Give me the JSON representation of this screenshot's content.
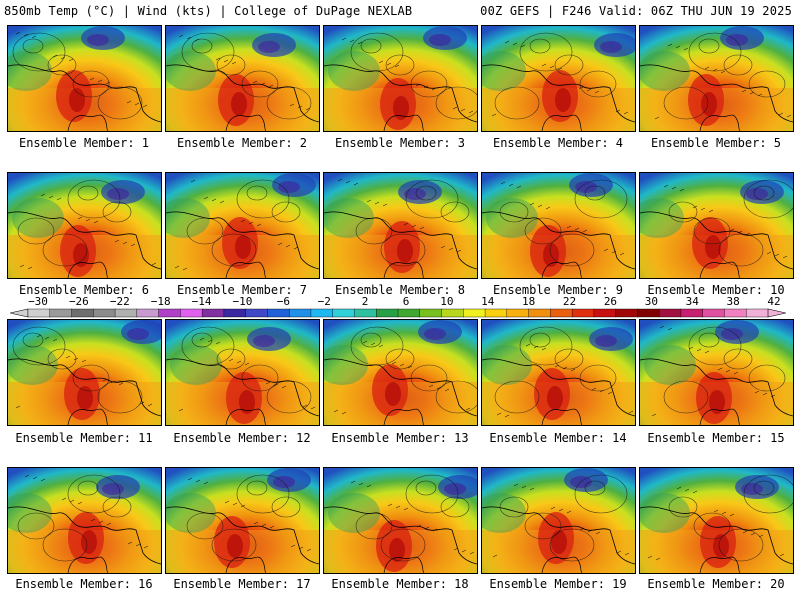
{
  "header": {
    "left": "850mb Temp (°C) | Wind (kts) | College of DuPage NEXLAB",
    "right": "00Z GEFS | F246 Valid: 06Z THU JUN 19 2025"
  },
  "panels": [
    {
      "caption": "Ensemble Member: 1"
    },
    {
      "caption": "Ensemble Member: 2"
    },
    {
      "caption": "Ensemble Member: 3"
    },
    {
      "caption": "Ensemble Member: 4"
    },
    {
      "caption": "Ensemble Member: 5"
    },
    {
      "caption": "Ensemble Member: 6"
    },
    {
      "caption": "Ensemble Member: 7"
    },
    {
      "caption": "Ensemble Member: 8"
    },
    {
      "caption": "Ensemble Member: 9"
    },
    {
      "caption": "Ensemble Member: 10"
    },
    {
      "caption": "Ensemble Member: 11"
    },
    {
      "caption": "Ensemble Member: 12"
    },
    {
      "caption": "Ensemble Member: 13"
    },
    {
      "caption": "Ensemble Member: 14"
    },
    {
      "caption": "Ensemble Member: 15"
    },
    {
      "caption": "Ensemble Member: 16"
    },
    {
      "caption": "Ensemble Member: 17"
    },
    {
      "caption": "Ensemble Member: 18"
    },
    {
      "caption": "Ensemble Member: 19"
    },
    {
      "caption": "Ensemble Member: 20"
    }
  ],
  "colorbar": {
    "labels": [
      "−30",
      "−26",
      "−22",
      "−18",
      "−14",
      "−10",
      "−6",
      "−2",
      "2",
      "6",
      "10",
      "14",
      "18",
      "22",
      "26",
      "30",
      "34",
      "38",
      "42"
    ],
    "colors": [
      "#d0d0d0",
      "#9a9a9a",
      "#6e6e6e",
      "#8c8c8c",
      "#b0b0b0",
      "#c89ad0",
      "#b040c8",
      "#e060f0",
      "#8030a0",
      "#3a28a0",
      "#4048c8",
      "#2060d8",
      "#2090e8",
      "#20b8f0",
      "#30d0d8",
      "#30c0a0",
      "#28a048",
      "#40a830",
      "#78c020",
      "#b8d820",
      "#f0f020",
      "#f8d010",
      "#f8b010",
      "#f09010",
      "#e86010",
      "#e03010",
      "#c81010",
      "#a00808",
      "#800000",
      "#a01040",
      "#c82070",
      "#e050a0",
      "#f080c0",
      "#f0b0d8"
    ]
  }
}
